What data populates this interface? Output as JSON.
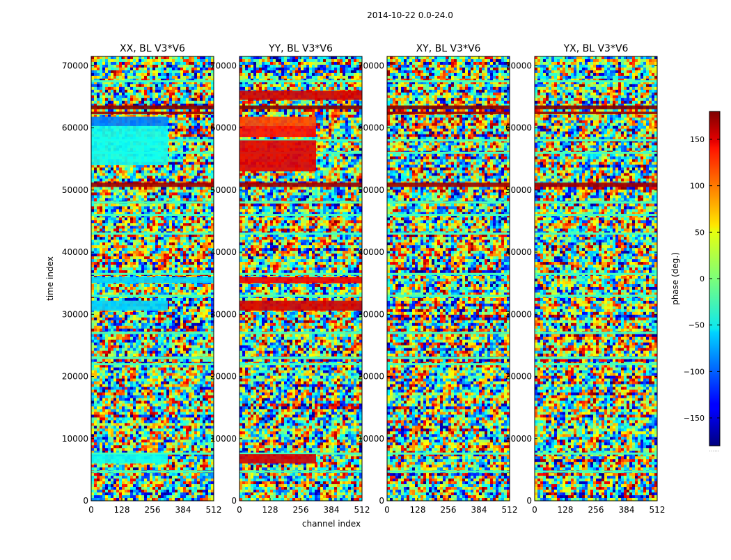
{
  "chart_data": {
    "type": "heatmap",
    "suptitle": "2014-10-22 0.0-24.0",
    "xlabel": "channel index",
    "ylabel": "time index",
    "xlim": [
      0,
      512
    ],
    "ylim": [
      0,
      71500
    ],
    "x_ticks": [
      0,
      128,
      256,
      384,
      512
    ],
    "y_ticks": [
      0,
      10000,
      20000,
      30000,
      40000,
      50000,
      60000,
      70000
    ],
    "colormap": "jet",
    "panels": [
      {
        "title": "XX, BL V3*V6",
        "bands": [
          {
            "y0": 63000,
            "y1": 63600,
            "value": 180,
            "x0": 0,
            "x1": 512
          },
          {
            "y0": 62200,
            "y1": 62600,
            "value": 170,
            "x0": 0,
            "x1": 512
          },
          {
            "y0": 60300,
            "y1": 61800,
            "value": -90,
            "x0": 0,
            "x1": 320
          },
          {
            "y0": 54000,
            "y1": 60300,
            "value": -40,
            "x0": 0,
            "x1": 320
          },
          {
            "y0": 50500,
            "y1": 51200,
            "value": 170,
            "x0": 0,
            "x1": 512
          },
          {
            "y0": 35000,
            "y1": 36000,
            "value": -60,
            "x0": 0,
            "x1": 512
          },
          {
            "y0": 30600,
            "y1": 32200,
            "value": -60,
            "x0": 0,
            "x1": 320
          },
          {
            "y0": 6000,
            "y1": 7500,
            "value": -40,
            "x0": 0,
            "x1": 320
          }
        ]
      },
      {
        "title": "YY, BL V3*V6",
        "bands": [
          {
            "y0": 63000,
            "y1": 63600,
            "value": 180,
            "x0": 0,
            "x1": 512
          },
          {
            "y0": 64500,
            "y1": 66000,
            "value": 150,
            "x0": 0,
            "x1": 512
          },
          {
            "y0": 60300,
            "y1": 61800,
            "value": 110,
            "x0": 0,
            "x1": 320
          },
          {
            "y0": 58500,
            "y1": 60300,
            "value": 130,
            "x0": 0,
            "x1": 320
          },
          {
            "y0": 53000,
            "y1": 58000,
            "value": 145,
            "x0": 0,
            "x1": 320
          },
          {
            "y0": 50500,
            "y1": 51200,
            "value": 170,
            "x0": 0,
            "x1": 512
          },
          {
            "y0": 35000,
            "y1": 36000,
            "value": 140,
            "x0": 0,
            "x1": 512
          },
          {
            "y0": 30600,
            "y1": 32200,
            "value": 150,
            "x0": 0,
            "x1": 512
          },
          {
            "y0": 6000,
            "y1": 7500,
            "value": 150,
            "x0": 0,
            "x1": 320
          }
        ]
      },
      {
        "title": "XY, BL V3*V6",
        "bands": [
          {
            "y0": 63000,
            "y1": 63600,
            "value": 180,
            "x0": 0,
            "x1": 512
          },
          {
            "y0": 62200,
            "y1": 62600,
            "value": 170,
            "x0": 0,
            "x1": 512
          },
          {
            "y0": 50500,
            "y1": 51200,
            "value": 170,
            "x0": 0,
            "x1": 512
          }
        ]
      },
      {
        "title": "YX, BL V3*V6",
        "bands": [
          {
            "y0": 63000,
            "y1": 63600,
            "value": 180,
            "x0": 0,
            "x1": 512
          },
          {
            "y0": 62200,
            "y1": 62600,
            "value": 170,
            "x0": 0,
            "x1": 512
          },
          {
            "y0": 50500,
            "y1": 51200,
            "value": 170,
            "x0": 0,
            "x1": 512
          }
        ]
      }
    ],
    "colorbar": {
      "label": "phase (deg.)",
      "range": [
        -180,
        180
      ],
      "ticks": [
        150,
        100,
        50,
        0,
        -50,
        -100,
        -150
      ],
      "tick_labels": [
        "150",
        "100",
        "50",
        "0",
        "−50",
        "−100",
        "−150"
      ],
      "footer": "......"
    }
  }
}
